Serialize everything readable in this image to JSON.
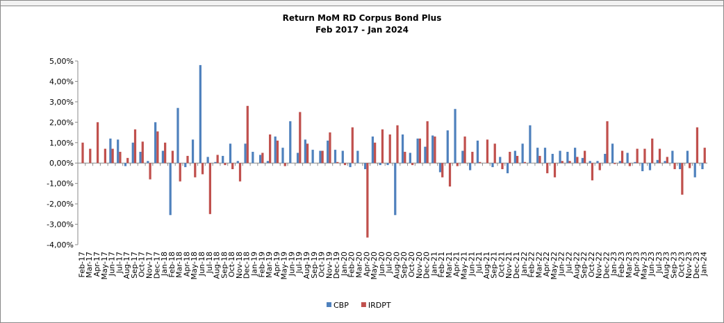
{
  "chart_data": {
    "type": "bar",
    "title": "Return MoM RD Corpus Bond Plus",
    "subtitle": "Feb 2017 - Jan 2024",
    "categories": [
      "Feb-17",
      "Mar-17",
      "Apr-17",
      "May-17",
      "Jun-17",
      "Jul-17",
      "Aug-17",
      "Sep-17",
      "Oct-17",
      "Nov-17",
      "Dec-17",
      "Jan-18",
      "Feb-18",
      "Mar-18",
      "Apr-18",
      "May-18",
      "Jun-18",
      "Jul-18",
      "Aug-18",
      "Sep-18",
      "Oct-18",
      "Nov-18",
      "Dec-18",
      "Jan-19",
      "Feb-19",
      "Mar-19",
      "Apr-19",
      "May-19",
      "Jun-19",
      "Jul-19",
      "Aug-19",
      "Sep-19",
      "Oct-19",
      "Nov-19",
      "Dec-19",
      "Jan-20",
      "Feb-20",
      "Mar-20",
      "Apr-20",
      "May-20",
      "Jun-20",
      "Jul-20",
      "Aug-20",
      "Sep-20",
      "Oct-20",
      "Nov-20",
      "Dec-20",
      "Jan-21",
      "Feb-21",
      "Mar-21",
      "Apr-21",
      "May-21",
      "Jun-21",
      "Jul-21",
      "Aug-21",
      "Sep-21",
      "Oct-21",
      "Nov-21",
      "Dec-21",
      "Jan-22",
      "Feb-22",
      "Mar-22",
      "Apr-22",
      "May-22",
      "Jun-22",
      "Jul-22",
      "Aug-22",
      "Sep-22",
      "Oct-22",
      "Nov-22",
      "Dec-22",
      "Jan-23",
      "Feb-23",
      "Mar-23",
      "Apr-23",
      "May-23",
      "Jun-23",
      "Jul-23",
      "Aug-23",
      "Sep-23",
      "Oct-23",
      "Nov-23",
      "Dec-23",
      "Jan-24"
    ],
    "series": [
      {
        "name": "CBP",
        "color": "#4f81bd",
        "values": [
          0,
          0,
          0,
          0,
          1.2,
          1.15,
          -0.15,
          1.0,
          0.55,
          0.1,
          2.0,
          0.6,
          -2.55,
          2.7,
          -0.2,
          1.15,
          4.8,
          0.3,
          0.05,
          0.35,
          0.95,
          0.1,
          0.95,
          0.55,
          0.4,
          0.1,
          1.3,
          0.75,
          2.05,
          0.5,
          1.15,
          0.65,
          0.6,
          1.1,
          0.65,
          0.6,
          -0.2,
          0.6,
          -0.3,
          1.3,
          -0.1,
          -0.1,
          -2.55,
          1.4,
          0.5,
          1.2,
          0.8,
          1.35,
          -0.45,
          1.6,
          2.65,
          0.6,
          -0.35,
          1.1,
          0,
          -0.2,
          0.3,
          -0.5,
          0.6,
          0.95,
          1.85,
          0.75,
          0.75,
          0.45,
          0.6,
          0.55,
          0.75,
          0.25,
          0.1,
          0.1,
          0.45,
          0.95,
          0.1,
          0.5,
          0.05,
          -0.4,
          -0.35,
          0.15,
          0.1,
          0.6,
          -0.3,
          0.6,
          -0.7,
          -0.3
        ]
      },
      {
        "name": "IRDPT",
        "color": "#c0504d",
        "values": [
          1.0,
          0.7,
          2.0,
          0.7,
          0.7,
          0.55,
          0.25,
          1.65,
          1.05,
          -0.8,
          1.55,
          1.0,
          0.6,
          -0.9,
          0.35,
          -0.7,
          -0.55,
          -2.5,
          0.4,
          -0.1,
          -0.3,
          -0.9,
          2.8,
          0,
          0.5,
          1.4,
          1.1,
          -0.15,
          0,
          2.5,
          0.95,
          0,
          0.6,
          1.5,
          0.05,
          -0.1,
          1.75,
          0,
          -3.65,
          1.0,
          1.65,
          1.4,
          1.85,
          0.55,
          -0.1,
          1.2,
          2.05,
          1.3,
          -0.7,
          -1.15,
          -0.15,
          1.3,
          0.55,
          0.05,
          1.15,
          0.95,
          -0.3,
          0.55,
          0.35,
          0.05,
          0,
          0.35,
          -0.5,
          -0.7,
          0.1,
          0.1,
          0.3,
          0.6,
          -0.85,
          -0.35,
          2.05,
          -0.05,
          0.6,
          -0.15,
          0.7,
          0.7,
          1.2,
          0.7,
          0.3,
          -0.3,
          -1.55,
          -0.25,
          1.75,
          0.75
        ]
      }
    ],
    "ylim": [
      -4,
      5
    ],
    "yticks": [
      {
        "value": -4,
        "label": "-4,00%"
      },
      {
        "value": -3,
        "label": "-3,00%"
      },
      {
        "value": -2,
        "label": "-2,00%"
      },
      {
        "value": -1,
        "label": "-1,00%"
      },
      {
        "value": 0,
        "label": "0,00%"
      },
      {
        "value": 1,
        "label": "1,00%"
      },
      {
        "value": 2,
        "label": "2,00%"
      },
      {
        "value": 3,
        "label": "3,00%"
      },
      {
        "value": 4,
        "label": "4,00%"
      },
      {
        "value": 5,
        "label": "5,00%"
      }
    ],
    "legend": "bottom"
  }
}
